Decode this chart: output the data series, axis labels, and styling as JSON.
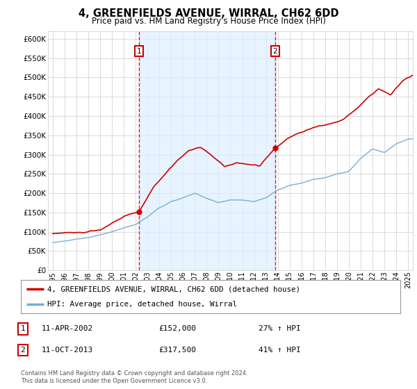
{
  "title": "4, GREENFIELDS AVENUE, WIRRAL, CH62 6DD",
  "subtitle": "Price paid vs. HM Land Registry's House Price Index (HPI)",
  "hpi_label": "HPI: Average price, detached house, Wirral",
  "property_label": "4, GREENFIELDS AVENUE, WIRRAL, CH62 6DD (detached house)",
  "footer": "Contains HM Land Registry data © Crown copyright and database right 2024.\nThis data is licensed under the Open Government Licence v3.0.",
  "annotation1": {
    "num": "1",
    "date": "11-APR-2002",
    "price": "£152,000",
    "hpi": "27% ↑ HPI",
    "x_year": 2002.28
  },
  "annotation2": {
    "num": "2",
    "date": "11-OCT-2013",
    "price": "£317,500",
    "hpi": "41% ↑ HPI",
    "x_year": 2013.78
  },
  "property_color": "#cc0000",
  "hpi_color": "#7aadd4",
  "shade_color": "#ddeeff",
  "background_color": "#ffffff",
  "plot_bg_color": "#ffffff",
  "grid_color": "#cccccc",
  "ylim": [
    0,
    620000
  ],
  "yticks": [
    0,
    50000,
    100000,
    150000,
    200000,
    250000,
    300000,
    350000,
    400000,
    450000,
    500000,
    550000,
    600000
  ],
  "xlim_start": 1994.6,
  "xlim_end": 2025.4,
  "xticks": [
    1995,
    1996,
    1997,
    1998,
    1999,
    2000,
    2001,
    2002,
    2003,
    2004,
    2005,
    2006,
    2007,
    2008,
    2009,
    2010,
    2011,
    2012,
    2013,
    2014,
    2015,
    2016,
    2017,
    2018,
    2019,
    2020,
    2021,
    2022,
    2023,
    2024,
    2025
  ]
}
